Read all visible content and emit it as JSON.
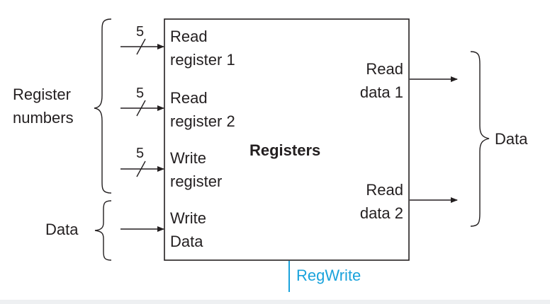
{
  "block_title": "Registers",
  "ports": {
    "read_register_1": [
      "Read",
      "register 1"
    ],
    "read_register_2": [
      "Read",
      "register 2"
    ],
    "write_register": [
      "Write",
      "register"
    ],
    "write_data": [
      "Write",
      "Data"
    ],
    "read_data_1": [
      "Read",
      "data 1"
    ],
    "read_data_2": [
      "Read",
      "data 2"
    ]
  },
  "bus_widths": {
    "read_register_1": "5",
    "read_register_2": "5",
    "write_register": "5"
  },
  "groups": {
    "register_numbers": [
      "Register",
      "numbers"
    ],
    "input_data": "Data",
    "output_data": "Data"
  },
  "control": {
    "label": "RegWrite",
    "color": "#1aa3dc"
  },
  "colors": {
    "ink": "#231f20",
    "control": "#1aa3dc"
  }
}
